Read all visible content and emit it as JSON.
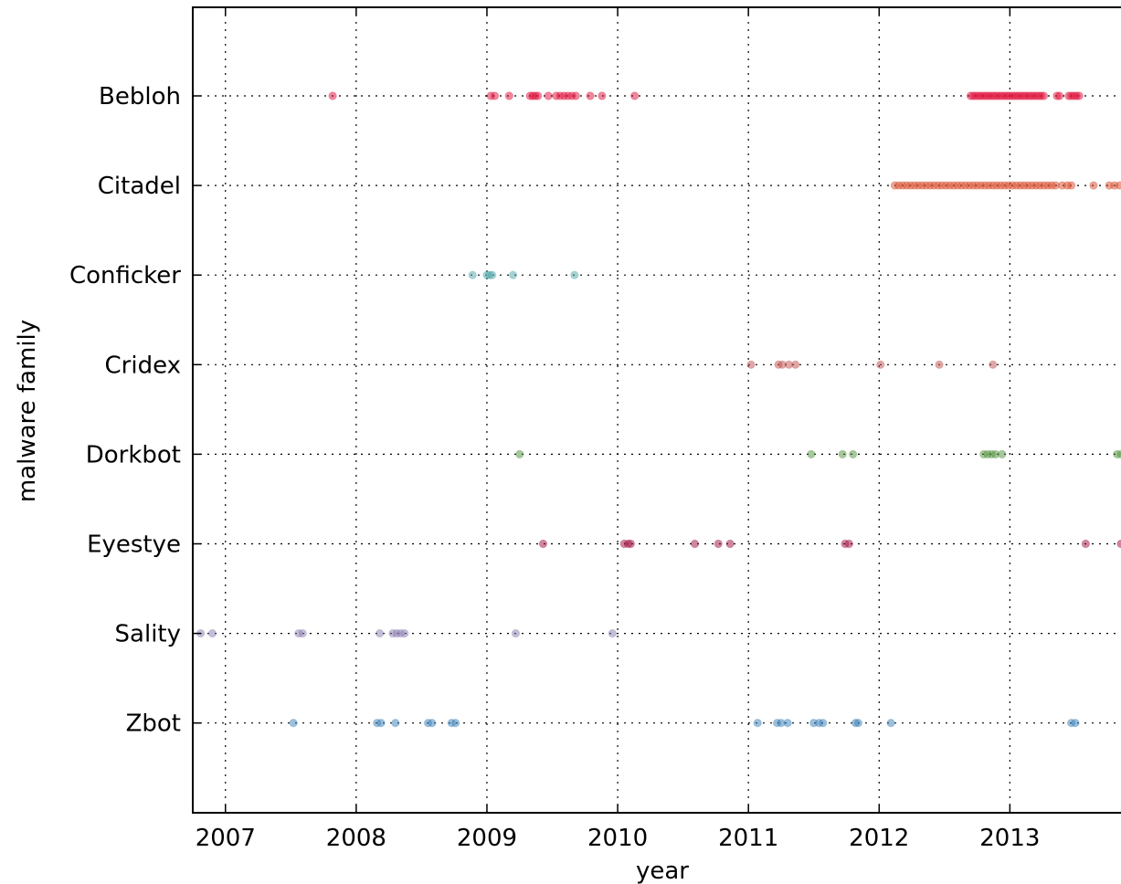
{
  "chart_data": {
    "type": "scatter",
    "title": "",
    "xlabel": "year",
    "ylabel": "malware family",
    "xlim": [
      2006.75,
      2013.85
    ],
    "x_ticks": [
      2007,
      2008,
      2009,
      2010,
      2011,
      2012,
      2013
    ],
    "categories": [
      "Bebloh",
      "Citadel",
      "Conficker",
      "Cridex",
      "Dorkbot",
      "Eyestye",
      "Sality",
      "Zbot"
    ],
    "grid": true,
    "series": [
      {
        "category": "Bebloh",
        "color": "#e0103a",
        "x": [
          2007.82,
          2009.03,
          2009.06,
          2009.17,
          2009.33,
          2009.35,
          2009.37,
          2009.39,
          2009.47,
          2009.53,
          2009.56,
          2009.59,
          2009.62,
          2009.65,
          2009.68,
          2009.79,
          2009.88,
          2010.13,
          2012.7,
          2012.72,
          2012.74,
          2012.76,
          2012.78,
          2012.8,
          2012.82,
          2012.84,
          2012.86,
          2012.88,
          2012.9,
          2012.92,
          2012.94,
          2012.96,
          2012.98,
          2013.0,
          2013.02,
          2013.04,
          2013.06,
          2013.08,
          2013.1,
          2013.12,
          2013.14,
          2013.16,
          2013.18,
          2013.2,
          2013.22,
          2013.24,
          2013.26,
          2013.36,
          2013.38,
          2013.45,
          2013.47,
          2013.49,
          2013.51,
          2013.53
        ]
      },
      {
        "category": "Citadel",
        "color": "#d84a2a",
        "x": [
          2012.12,
          2012.15,
          2012.18,
          2012.21,
          2012.24,
          2012.27,
          2012.3,
          2012.33,
          2012.36,
          2012.39,
          2012.42,
          2012.45,
          2012.48,
          2012.51,
          2012.54,
          2012.57,
          2012.6,
          2012.63,
          2012.66,
          2012.69,
          2012.72,
          2012.75,
          2012.78,
          2012.81,
          2012.84,
          2012.87,
          2012.9,
          2012.93,
          2012.96,
          2012.99,
          2013.02,
          2013.05,
          2013.08,
          2013.11,
          2013.14,
          2013.17,
          2013.2,
          2013.23,
          2013.26,
          2013.29,
          2013.32,
          2013.35,
          2013.4,
          2013.44,
          2013.47,
          2013.64,
          2013.76,
          2013.8,
          2013.84
        ]
      },
      {
        "category": "Conficker",
        "color": "#4fa6a8",
        "x": [
          2008.89,
          2009.0,
          2009.02,
          2009.04,
          2009.2,
          2009.67
        ]
      },
      {
        "category": "Cridex",
        "color": "#c0504d",
        "x": [
          2011.02,
          2011.23,
          2011.26,
          2011.31,
          2011.36,
          2012.01,
          2012.46,
          2012.87
        ]
      },
      {
        "category": "Dorkbot",
        "color": "#4f8f3a",
        "x": [
          2009.25,
          2011.48,
          2011.72,
          2011.8,
          2012.8,
          2012.83,
          2012.86,
          2012.89,
          2012.94,
          2013.82,
          2013.85
        ]
      },
      {
        "category": "Eyestye",
        "color": "#a01040",
        "x": [
          2009.43,
          2010.05,
          2010.08,
          2010.1,
          2010.59,
          2010.77,
          2010.86,
          2011.74,
          2011.77,
          2013.58,
          2013.85
        ]
      },
      {
        "category": "Sality",
        "color": "#8a7cb0",
        "x": [
          2006.81,
          2006.9,
          2007.56,
          2007.59,
          2008.18,
          2008.28,
          2008.31,
          2008.34,
          2008.37,
          2009.22,
          2009.96
        ]
      },
      {
        "category": "Zbot",
        "color": "#3a7fb8",
        "x": [
          2007.52,
          2008.16,
          2008.19,
          2008.3,
          2008.55,
          2008.58,
          2008.73,
          2008.76,
          2011.07,
          2011.22,
          2011.25,
          2011.3,
          2011.5,
          2011.54,
          2011.57,
          2011.82,
          2011.84,
          2012.09,
          2013.47,
          2013.5
        ]
      }
    ]
  }
}
